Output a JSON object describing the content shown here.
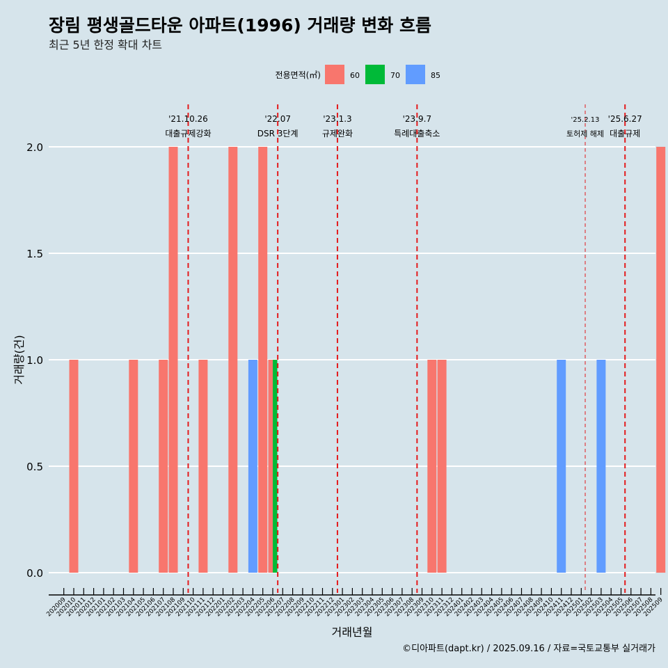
{
  "chart_data": {
    "type": "bar",
    "title": "장림 평생골드타운 아파트(1996) 거래량 변화 흐름",
    "subtitle": "최근 5년 한정 확대 차트",
    "xlabel": "거래년월",
    "ylabel": "거래량(건)",
    "ylim": [
      0,
      2.1
    ],
    "yticks": [
      "0.0",
      "0.5",
      "1.0",
      "1.5",
      "2.0"
    ],
    "ytick_values": [
      0,
      0.5,
      1.0,
      1.5,
      2.0
    ],
    "legend": {
      "title": "전용면적(㎡)",
      "placement": "top",
      "entries": [
        {
          "name": "60",
          "color": "#f8766d"
        },
        {
          "name": "70",
          "color": "#00ba38"
        },
        {
          "name": "85",
          "color": "#619cff"
        }
      ]
    },
    "categories": [
      "202009",
      "202010",
      "202011",
      "202012",
      "202101",
      "202102",
      "202103",
      "202104",
      "202105",
      "202106",
      "202107",
      "202108",
      "202109",
      "202110",
      "202111",
      "202112",
      "202201",
      "202202",
      "202203",
      "202204",
      "202205",
      "202206",
      "202207",
      "202208",
      "202209",
      "202210",
      "202211",
      "202212",
      "202301",
      "202302",
      "202303",
      "202304",
      "202305",
      "202306",
      "202307",
      "202308",
      "202309",
      "202310",
      "202311",
      "202312",
      "202401",
      "202402",
      "202403",
      "202404",
      "202405",
      "202406",
      "202407",
      "202408",
      "202409",
      "202410",
      "202411",
      "202412",
      "202501",
      "202502",
      "202503",
      "202504",
      "202505",
      "202506",
      "202507",
      "202508",
      "202509"
    ],
    "series": [
      {
        "name": "60",
        "color": "#f8766d",
        "points": [
          {
            "month": "202010",
            "value": 1
          },
          {
            "month": "202104",
            "value": 1
          },
          {
            "month": "202107",
            "value": 1
          },
          {
            "month": "202108",
            "value": 2
          },
          {
            "month": "202111",
            "value": 1
          },
          {
            "month": "202202",
            "value": 2
          },
          {
            "month": "202205",
            "value": 2
          },
          {
            "month": "202206",
            "value": 1
          },
          {
            "month": "202310",
            "value": 1
          },
          {
            "month": "202311",
            "value": 1
          },
          {
            "month": "202509",
            "value": 2
          }
        ]
      },
      {
        "name": "70",
        "color": "#00ba38",
        "points": [
          {
            "month": "202206",
            "value": 1
          }
        ]
      },
      {
        "name": "85",
        "color": "#619cff",
        "points": [
          {
            "month": "202204",
            "value": 1
          },
          {
            "month": "202411",
            "value": 1
          },
          {
            "month": "202503",
            "value": 1
          }
        ]
      }
    ],
    "annotations": [
      {
        "at": 12.5,
        "date": "'21.10.26",
        "label": "대출규제강화",
        "style": "bold"
      },
      {
        "at": 21.5,
        "date": "'22.07",
        "label": "DSR 3단계",
        "style": "bold"
      },
      {
        "at": 27.5,
        "date": "'23.1.3",
        "label": "규제완화",
        "style": "bold"
      },
      {
        "at": 35.5,
        "date": "'23.9.7",
        "label": "특례대출축소",
        "style": "bold"
      },
      {
        "at": 52.4,
        "date": "'25.2.13",
        "label": "토허제 해제",
        "style": "thin"
      },
      {
        "at": 56.4,
        "date": "'25.6.27",
        "label": "대출규제",
        "style": "bold"
      }
    ]
  },
  "caption": "©디아파트(dapt.kr) / 2025.09.16 / 자료=국토교통부 실거래가",
  "colors": {
    "background": "#d6e4eb",
    "grid": "#ffffff",
    "vline": "#e41a1c"
  }
}
